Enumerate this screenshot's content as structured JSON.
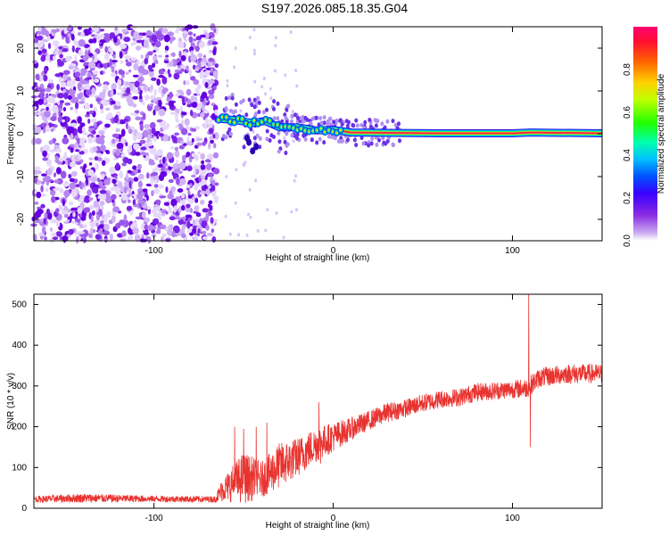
{
  "title": "S197.2026.085.18.35.G04",
  "colors": {
    "snr_line": "#e8332f",
    "axis": "#000000",
    "scatter_purple": "#6a00e8",
    "colormap": [
      "#ffffff",
      "#c8a8f0",
      "#8a2be2",
      "#4b00ff",
      "#0040ff",
      "#00c8ff",
      "#00ff80",
      "#80ff00",
      "#ffff00",
      "#ff8000",
      "#ff0040",
      "#ff0080"
    ]
  },
  "chart_data": [
    {
      "type": "heatmap",
      "xlabel": "Height of straight line (km)",
      "ylabel": "Frequency (Hz)",
      "xlim": [
        -167,
        150
      ],
      "ylim": [
        -25,
        25
      ],
      "x_ticks": [
        -100,
        0,
        100
      ],
      "y_ticks": [
        -20,
        -10,
        0,
        10,
        20
      ],
      "noise_region_x": [
        -167,
        -65
      ],
      "signal_track": [
        {
          "x": -64,
          "y": 3.5
        },
        {
          "x": -55,
          "y": 3.2
        },
        {
          "x": -45,
          "y": 2.5
        },
        {
          "x": -38,
          "y": 3.0
        },
        {
          "x": -30,
          "y": 1.5
        },
        {
          "x": -20,
          "y": 1.5
        },
        {
          "x": -10,
          "y": 0.8
        },
        {
          "x": 0,
          "y": 0.9
        },
        {
          "x": 10,
          "y": 0.3
        },
        {
          "x": 30,
          "y": 0.2
        },
        {
          "x": 60,
          "y": 0.1
        },
        {
          "x": 100,
          "y": 0.1
        },
        {
          "x": 110,
          "y": 0.3
        },
        {
          "x": 150,
          "y": 0.1
        }
      ],
      "colorbar": {
        "label": "Normalized spectral amplitude",
        "ticks": [
          "0.0",
          "0.2",
          "0.4",
          "0.6",
          "0.8"
        ],
        "range": [
          0,
          1
        ]
      }
    },
    {
      "type": "line",
      "xlabel": "Height of straight line (km)",
      "ylabel": "SNR (10 * v/v)",
      "xlim": [
        -167,
        150
      ],
      "ylim": [
        0,
        525
      ],
      "x_ticks": [
        -100,
        0,
        100
      ],
      "y_ticks": [
        0,
        100,
        200,
        300,
        400,
        500
      ],
      "series": [
        {
          "color": "#e8332f",
          "envelope": [
            {
              "x": -167,
              "mean": 22,
              "spread": 10
            },
            {
              "x": -140,
              "mean": 25,
              "spread": 14
            },
            {
              "x": -100,
              "mean": 23,
              "spread": 10
            },
            {
              "x": -66,
              "mean": 22,
              "spread": 10
            },
            {
              "x": -62,
              "mean": 45,
              "spread": 35
            },
            {
              "x": -50,
              "mean": 75,
              "spread": 80
            },
            {
              "x": -40,
              "mean": 70,
              "spread": 55
            },
            {
              "x": -30,
              "mean": 105,
              "spread": 70
            },
            {
              "x": -20,
              "mean": 125,
              "spread": 60
            },
            {
              "x": -10,
              "mean": 155,
              "spread": 55
            },
            {
              "x": 0,
              "mean": 175,
              "spread": 45
            },
            {
              "x": 10,
              "mean": 195,
              "spread": 35
            },
            {
              "x": 20,
              "mean": 215,
              "spread": 30
            },
            {
              "x": 30,
              "mean": 235,
              "spread": 30
            },
            {
              "x": 40,
              "mean": 245,
              "spread": 28
            },
            {
              "x": 50,
              "mean": 258,
              "spread": 28
            },
            {
              "x": 60,
              "mean": 268,
              "spread": 28
            },
            {
              "x": 70,
              "mean": 272,
              "spread": 28
            },
            {
              "x": 80,
              "mean": 285,
              "spread": 28
            },
            {
              "x": 90,
              "mean": 288,
              "spread": 28
            },
            {
              "x": 100,
              "mean": 292,
              "spread": 28
            },
            {
              "x": 108,
              "mean": 295,
              "spread": 30
            },
            {
              "x": 115,
              "mean": 320,
              "spread": 30
            },
            {
              "x": 130,
              "mean": 330,
              "spread": 30
            },
            {
              "x": 150,
              "mean": 330,
              "spread": 30
            }
          ],
          "spikes": [
            {
              "x": 109,
              "y": 525
            },
            {
              "x": 110,
              "y": 150
            },
            {
              "x": -50,
              "y": 195
            },
            {
              "x": -43,
              "y": 200
            },
            {
              "x": -37,
              "y": 210
            },
            {
              "x": -8,
              "y": 260
            },
            {
              "x": -7,
              "y": 110
            },
            {
              "x": -55,
              "y": 200
            }
          ]
        }
      ]
    }
  ]
}
